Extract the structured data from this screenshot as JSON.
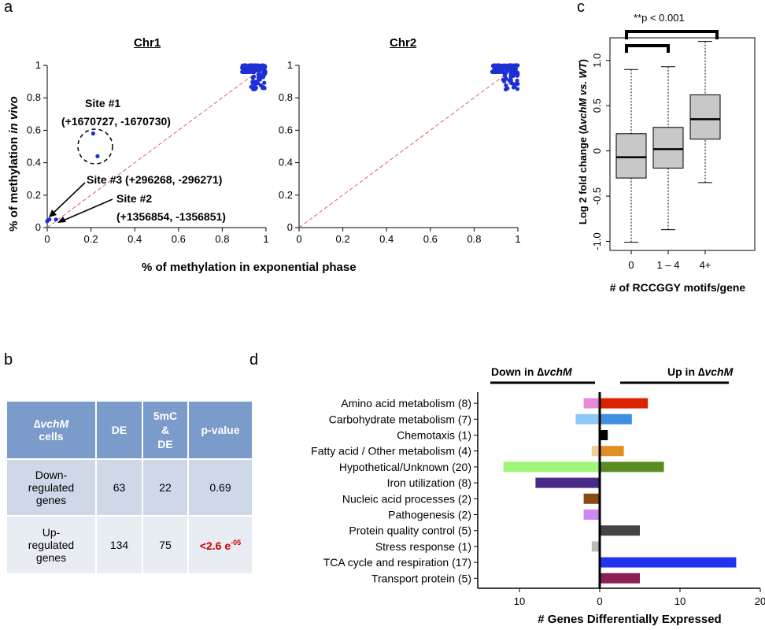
{
  "panels": {
    "a": {
      "letter": "a",
      "chr1": {
        "title": "Chr1"
      },
      "chr2": {
        "title": "Chr2"
      },
      "y_label_plain": "% of methylation ",
      "y_label_italic": "in vivo",
      "x_label": "% of methylation in exponential phase",
      "x_ticks": [
        "0",
        "0.2",
        "0.4",
        "0.6",
        "0.8",
        "1"
      ],
      "y_ticks": [
        "0",
        "0.2",
        "0.4",
        "0.6",
        "0.8",
        "1"
      ],
      "annotations": {
        "site1_line1": "Site #1",
        "site1_line2": "(+1670727, -1670730)",
        "site3": "Site #3 (+296268, -296271)",
        "site2_line1": "Site #2",
        "site2_line2": "(+1356854, -1356851)"
      },
      "colors": {
        "points": "#1f2fd6",
        "diagonal": "#e06060"
      }
    },
    "b": {
      "letter": "b",
      "header": {
        "col1_delta": "∆",
        "col1_italic": "vchM",
        "col1_rest": "cells",
        "col2": "DE",
        "col3_l1": "5mC",
        "col3_l2": "&",
        "col3_l3": "DE",
        "col4": "p-value"
      },
      "rows": [
        {
          "label_l1": "Down-",
          "label_l2": "regulated",
          "label_l3": "genes",
          "de": "63",
          "mc": "22",
          "p": "0.69",
          "p_sup": ""
        },
        {
          "label_l1": "Up-",
          "label_l2": "regulated",
          "label_l3": "genes",
          "de": "134",
          "mc": "75",
          "p": "<2.6 e",
          "p_sup": "-05"
        }
      ]
    },
    "c": {
      "letter": "c",
      "significance": "**p < 0.001",
      "y_label_plain": "Log 2 fold change (",
      "y_label_delta": "∆",
      "y_label_italic": "vchM vs. WT",
      "y_label_close": ")",
      "x_label": "# of RCCGGY motifs/gene",
      "y_ticks": [
        "-1.0",
        "-0.5",
        "0",
        "0.5",
        "1.0"
      ],
      "categories": [
        "0",
        "1 – 4",
        "4+"
      ]
    },
    "d": {
      "letter": "d",
      "down_label_plain": "Down in ",
      "down_label_italic": "vchM",
      "up_label_plain": "Up in ",
      "up_label_italic": "vchM",
      "delta": "∆",
      "x_label": "# Genes Differentially Expressed",
      "x_ticks": [
        "10",
        "0",
        "10",
        "20"
      ]
    }
  },
  "chart_data": [
    {
      "type": "scatter",
      "panel": "a-Chr1",
      "title": "Chr1",
      "xlabel": "% of methylation in exponential phase",
      "ylabel": "% of methylation in vivo",
      "xlim": [
        0,
        1
      ],
      "ylim": [
        0,
        1
      ],
      "highlighted_points": [
        {
          "x": 0.21,
          "y": 0.58
        },
        {
          "x": 0.23,
          "y": 0.44
        },
        {
          "x": 0.01,
          "y": 0.05
        },
        {
          "x": 0.04,
          "y": 0.05
        },
        {
          "x": 0.0,
          "y": 0.04
        }
      ],
      "cluster": {
        "x_range": [
          0.89,
          1.0
        ],
        "y_range": [
          0.85,
          1.0
        ]
      },
      "diagonal": true
    },
    {
      "type": "scatter",
      "panel": "a-Chr2",
      "title": "Chr2",
      "xlim": [
        0,
        1
      ],
      "ylim": [
        0,
        1
      ],
      "cluster": {
        "x_range": [
          0.88,
          1.0
        ],
        "y_range": [
          0.85,
          1.0
        ]
      },
      "diagonal": true
    },
    {
      "type": "box",
      "panel": "c",
      "categories": [
        "0",
        "1 – 4",
        "4+"
      ],
      "ylim": [
        -1.1,
        1.25
      ],
      "boxes": [
        {
          "min": -1.01,
          "q1": -0.3,
          "median": -0.07,
          "q3": 0.19,
          "max": 0.9
        },
        {
          "min": -0.87,
          "q1": -0.19,
          "median": 0.02,
          "q3": 0.26,
          "max": 0.93
        },
        {
          "min": -0.35,
          "q1": 0.13,
          "median": 0.35,
          "q3": 0.62,
          "max": 1.21
        }
      ]
    },
    {
      "type": "bar",
      "panel": "d",
      "orientation": "horizontal",
      "xlabel": "# Genes Differentially Expressed",
      "xlim": [
        -15,
        20
      ],
      "categories": [
        "Amino acid metabolism (8)",
        "Carbohydrate metabolism (7)",
        "Chemotaxis (1)",
        "Fatty acid / Other metabolism (4)",
        "Hypothetical/Unknown (20)",
        "Iron utilization (8)",
        "Nucleic acid processes (2)",
        "Pathogenesis (2)",
        "Protein quality control (5)",
        "Stress response (1)",
        "TCA cycle and respiration (17)",
        "Transport protein (5)"
      ],
      "down": [
        2,
        3,
        0,
        1,
        12,
        8,
        2,
        2,
        0,
        1,
        0,
        0
      ],
      "up": [
        6,
        4,
        1,
        3,
        8,
        0,
        0,
        0,
        5,
        0,
        17,
        5
      ],
      "down_colors": [
        "#e88adb",
        "#8fc8f5",
        "#000000",
        "#f5cc96",
        "#9ef57a",
        "#4b2a8c",
        "#8a4a10",
        "#cc8af0",
        "#444444",
        "#bbbbbb",
        "#2233ee",
        "#8c1f55"
      ],
      "up_colors": [
        "#dd2200",
        "#3d8fe0",
        "#000000",
        "#e08f20",
        "#5a8c20",
        "#4b2a8c",
        "#8a4a10",
        "#cc8af0",
        "#444444",
        "#bbbbbb",
        "#2233ee",
        "#8c1f55"
      ]
    }
  ]
}
